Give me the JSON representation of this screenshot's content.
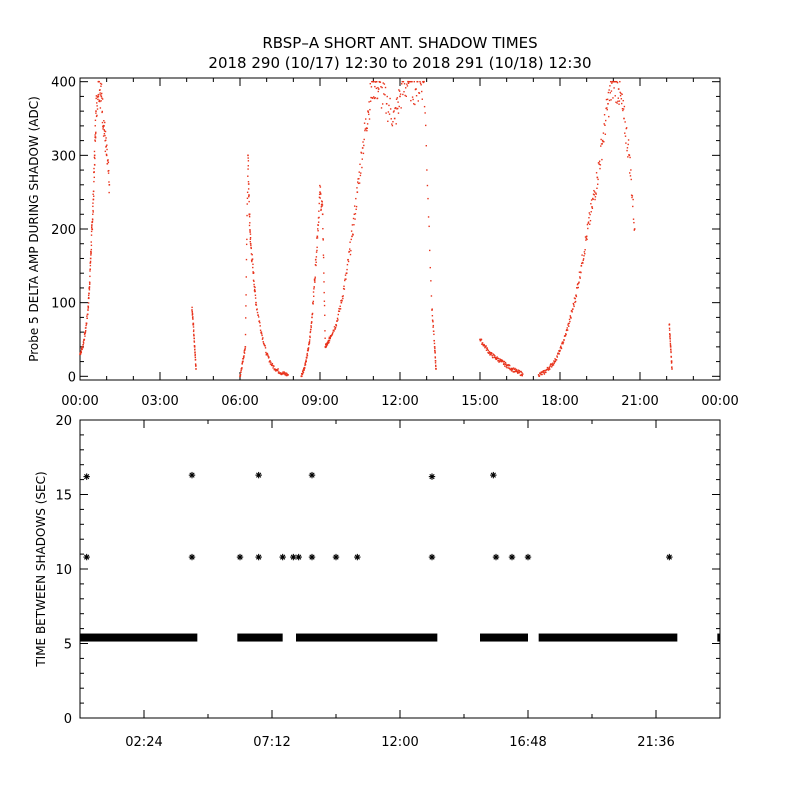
{
  "title_line1": "RBSP–A SHORT ANT. SHADOW TIMES",
  "title_line2": "2018 290 (10/17) 12:30 to 2018 291 (10/18) 12:30",
  "chart_data": [
    {
      "type": "scatter",
      "ylabel": "Probe 5 DELTA AMP DURING SHADOW (ADC)",
      "xlabel": "",
      "xlim_hours": [
        0,
        24
      ],
      "ylim": [
        -5,
        405
      ],
      "x_tick_labels": [
        "00:00",
        "03:00",
        "06:00",
        "09:00",
        "12:00",
        "15:00",
        "18:00",
        "21:00",
        "00:00"
      ],
      "y_tick_labels": [
        "0",
        "100",
        "200",
        "300",
        "400"
      ],
      "marker_color": "#e8331c",
      "series": [
        {
          "description": "shadow amplitude points (hour, ADC)",
          "points": [
            [
              0.0,
              30
            ],
            [
              0.1,
              40
            ],
            [
              0.2,
              60
            ],
            [
              0.3,
              90
            ],
            [
              0.35,
              120
            ],
            [
              0.4,
              160
            ],
            [
              0.45,
              200
            ],
            [
              0.5,
              240
            ],
            [
              0.55,
              300
            ],
            [
              0.6,
              360
            ],
            [
              0.7,
              400
            ],
            [
              0.8,
              380
            ],
            [
              0.9,
              340
            ],
            [
              1.0,
              300
            ],
            [
              1.1,
              260
            ],
            [
              4.2,
              90
            ],
            [
              4.25,
              70
            ],
            [
              4.3,
              40
            ],
            [
              4.35,
              10
            ],
            [
              6.0,
              0
            ],
            [
              6.1,
              20
            ],
            [
              6.2,
              40
            ],
            [
              6.3,
              300
            ],
            [
              6.35,
              220
            ],
            [
              6.4,
              180
            ],
            [
              6.5,
              140
            ],
            [
              6.6,
              100
            ],
            [
              6.8,
              60
            ],
            [
              7.0,
              30
            ],
            [
              7.2,
              15
            ],
            [
              7.4,
              8
            ],
            [
              7.6,
              4
            ],
            [
              7.8,
              2
            ],
            [
              8.3,
              0
            ],
            [
              8.4,
              10
            ],
            [
              8.5,
              25
            ],
            [
              8.6,
              45
            ],
            [
              8.7,
              80
            ],
            [
              8.8,
              130
            ],
            [
              8.9,
              190
            ],
            [
              9.0,
              250
            ],
            [
              9.1,
              220
            ],
            [
              9.2,
              40
            ],
            [
              9.3,
              45
            ],
            [
              9.4,
              55
            ],
            [
              9.6,
              70
            ],
            [
              9.8,
              100
            ],
            [
              10.0,
              140
            ],
            [
              10.2,
              190
            ],
            [
              10.4,
              250
            ],
            [
              10.6,
              310
            ],
            [
              10.8,
              360
            ],
            [
              11.0,
              400
            ],
            [
              11.2,
              390
            ],
            [
              11.5,
              370
            ],
            [
              11.8,
              350
            ],
            [
              12.0,
              380
            ],
            [
              12.3,
              400
            ],
            [
              12.6,
              390
            ],
            [
              12.9,
              400
            ],
            [
              13.2,
              90
            ],
            [
              13.3,
              40
            ],
            [
              13.35,
              10
            ],
            [
              15.0,
              50
            ],
            [
              15.2,
              40
            ],
            [
              15.4,
              30
            ],
            [
              15.6,
              25
            ],
            [
              15.8,
              20
            ],
            [
              16.0,
              15
            ],
            [
              16.2,
              10
            ],
            [
              16.4,
              6
            ],
            [
              16.6,
              3
            ],
            [
              17.2,
              2
            ],
            [
              17.4,
              5
            ],
            [
              17.6,
              12
            ],
            [
              17.8,
              20
            ],
            [
              18.0,
              35
            ],
            [
              18.2,
              55
            ],
            [
              18.4,
              80
            ],
            [
              18.6,
              110
            ],
            [
              18.8,
              150
            ],
            [
              19.0,
              190
            ],
            [
              19.2,
              230
            ],
            [
              19.4,
              270
            ],
            [
              19.6,
              320
            ],
            [
              19.8,
              370
            ],
            [
              20.0,
              400
            ],
            [
              20.2,
              390
            ],
            [
              20.4,
              350
            ],
            [
              20.6,
              300
            ],
            [
              20.8,
              200
            ],
            [
              22.1,
              70
            ],
            [
              22.15,
              40
            ],
            [
              22.2,
              10
            ]
          ]
        }
      ]
    },
    {
      "type": "scatter",
      "ylabel": "TIME BETWEEN SHADOWS (SEC)",
      "xlabel": "",
      "xlim_hours": [
        0,
        24
      ],
      "ylim": [
        0,
        20
      ],
      "x_tick_labels": [
        "02:24",
        "07:12",
        "12:00",
        "16:48",
        "21:36"
      ],
      "y_tick_labels": [
        "0",
        "5",
        "10",
        "15",
        "20"
      ],
      "marker": "*",
      "marker_color": "#000000",
      "series": [
        {
          "name": "5.4 s band segments (start_h, end_h)",
          "segments": [
            [
              0.0,
              4.4
            ],
            [
              5.9,
              7.6
            ],
            [
              8.1,
              13.4
            ],
            [
              15.0,
              16.8
            ],
            [
              17.2,
              22.4
            ],
            [
              23.9,
              24.0
            ]
          ]
        },
        {
          "name": "isolated intervals (hour, sec)",
          "points": [
            [
              0.25,
              16.2
            ],
            [
              0.25,
              10.8
            ],
            [
              4.2,
              16.3
            ],
            [
              4.2,
              10.8
            ],
            [
              6.0,
              10.8
            ],
            [
              6.7,
              16.3
            ],
            [
              6.7,
              10.8
            ],
            [
              7.6,
              10.8
            ],
            [
              8.0,
              10.8
            ],
            [
              8.2,
              10.8
            ],
            [
              8.7,
              16.3
            ],
            [
              8.7,
              10.8
            ],
            [
              9.6,
              10.8
            ],
            [
              10.4,
              10.8
            ],
            [
              13.2,
              16.2
            ],
            [
              13.2,
              10.8
            ],
            [
              15.5,
              16.3
            ],
            [
              15.6,
              10.8
            ],
            [
              16.2,
              10.8
            ],
            [
              16.8,
              10.8
            ],
            [
              22.1,
              10.8
            ]
          ]
        }
      ]
    }
  ]
}
